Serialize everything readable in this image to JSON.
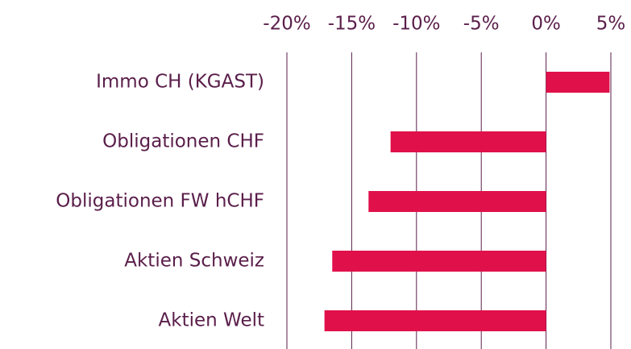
{
  "chart_data": {
    "type": "bar",
    "orientation": "horizontal",
    "categories": [
      "Immo CH (KGAST)",
      "Obligationen CHF",
      "Obligationen FW hCHF",
      "Aktien Schweiz",
      "Aktien Welt"
    ],
    "values": [
      4.9,
      -12,
      -13.7,
      -16.5,
      -17.1
    ],
    "color": "#e0104a",
    "xlim": [
      -20,
      5
    ],
    "xticks": [
      {
        "value": -20,
        "label": "-20%"
      },
      {
        "value": -15,
        "label": "-15%"
      },
      {
        "value": -10,
        "label": "-10%"
      },
      {
        "value": -5,
        "label": "-5%"
      },
      {
        "value": 0,
        "label": "0%"
      },
      {
        "value": 5,
        "label": "5%"
      }
    ],
    "grid": true
  }
}
